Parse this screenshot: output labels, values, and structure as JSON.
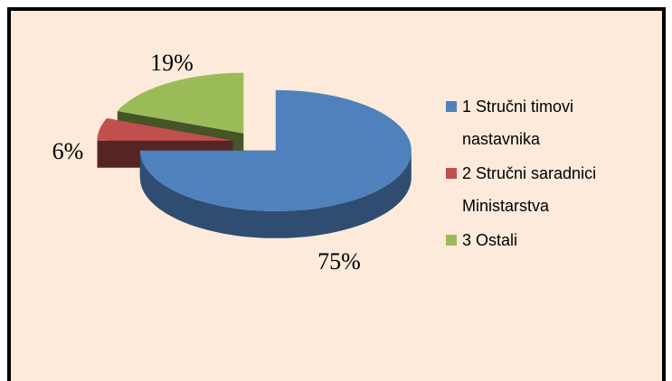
{
  "chart_data": {
    "type": "pie",
    "categories": [
      "1 Stručni timovi nastavnika",
      "2 Stručni saradnici Ministarstva",
      "3 Ostali"
    ],
    "values": [
      75,
      6,
      19
    ],
    "value_labels": [
      "75%",
      "6%",
      "19%"
    ],
    "colors": [
      "#4f81bd",
      "#c0504d",
      "#9bbb59"
    ],
    "legend": "right"
  }
}
